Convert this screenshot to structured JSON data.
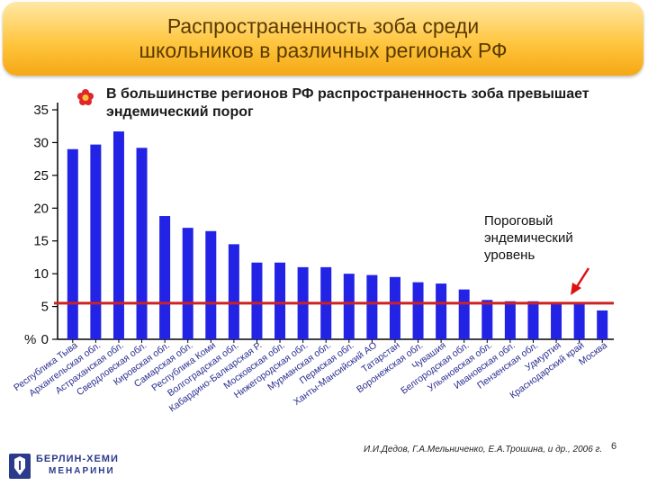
{
  "title": {
    "line1": "Распространенность зоба среди",
    "line2": "школьников в различных регионах РФ"
  },
  "subtitle": "В большинстве регионов РФ распространенность зоба превышает эндемический порог",
  "legend": {
    "line1": "Пороговый",
    "line2": "эндемический",
    "line3": "уровень"
  },
  "source": "И.И.Дедов, Г.А.Мельниченко, Е.А.Трошина, и др., 2006 г.",
  "page_number": "6",
  "logo": {
    "line1": "БЕРЛИН-ХЕМИ",
    "line2": "МЕНАРИНИ"
  },
  "colors": {
    "bar": "#2323e6",
    "threshold": "#cc2222",
    "arrow": "#dd1111",
    "banner": "#ffc640"
  },
  "chart_data": {
    "type": "bar",
    "ylabel": "%",
    "ylim": [
      0,
      35
    ],
    "yticks": [
      0,
      5,
      10,
      15,
      20,
      25,
      30,
      35
    ],
    "grid": false,
    "threshold": 5.5,
    "categories": [
      "Республика Тыва",
      "Архангельская обл.",
      "Астраханская обл.",
      "Свердловская обл.",
      "Кировская обл.",
      "Самарская обл.",
      "Республика Коми",
      "Волгоградская обл.",
      "Кабардино-Балкарская Р.",
      "Московская обл.",
      "Нижегородская обл.",
      "Мурманская обл.",
      "Пермская обл.",
      "Ханты-Мансийский АО",
      "Татарстан",
      "Воронежская обл.",
      "Чувашия",
      "Белгородская обл.",
      "Ульяновская обл.",
      "Ивановская обл.",
      "Пензенская обл.",
      "Удмуртия",
      "Краснодарский край",
      "Москва"
    ],
    "values": [
      29,
      29.7,
      31.7,
      29.2,
      18.8,
      17,
      16.5,
      14.5,
      11.7,
      11.7,
      11,
      11,
      10,
      9.8,
      9.5,
      8.7,
      8.5,
      7.6,
      6,
      5.8,
      5.8,
      5.6,
      5.6,
      4.4
    ]
  }
}
